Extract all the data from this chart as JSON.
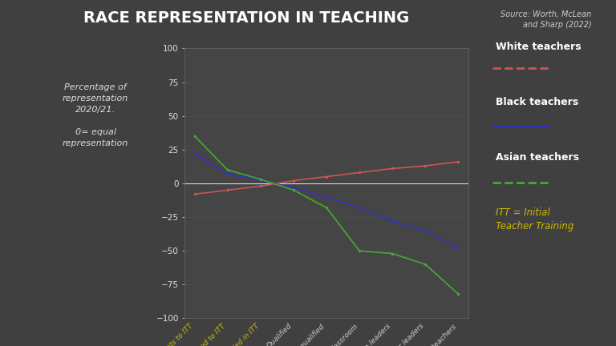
{
  "title": "RACE REPRESENTATION IN TEACHING",
  "source": "Source: Worth, McLean\nand Sharp (2022)",
  "ylabel_text": "Percentage of\nrepresentation\n2020/21.\n\n0= equal\nrepresentation",
  "itt_note": "ITT = Initial\nTeacher Training",
  "x_labels": [
    "Applicants to ITT",
    "Accepted to ITT",
    "Enrolled in ITT",
    "Qualified",
    "Newly-qualified",
    "Classroom",
    "Middle leaders",
    "Senior leaders",
    "Headteachers"
  ],
  "white_data": [
    -8,
    -5,
    -2,
    2,
    5,
    8,
    11,
    13,
    16
  ],
  "black_data": [
    22,
    7,
    2,
    -3,
    -10,
    -18,
    -28,
    -35,
    -48
  ],
  "asian_data": [
    35,
    10,
    3,
    -5,
    -18,
    -50,
    -52,
    -60,
    -82
  ],
  "white_color": "#cc5555",
  "black_color": "#3333bb",
  "asian_color": "#44aa33",
  "bg_color": "#404040",
  "chart_bg": "#454545",
  "text_color": "#e0e0e0",
  "grid_color": "#777777",
  "title_color": "#ffffff",
  "source_color": "#cccccc",
  "ylabel_color": "#dddddd",
  "legend_label_color": "#ffffff",
  "itt_color": "#ccbb00",
  "xtick_itt_color": "#ccbb00",
  "xtick_normal_color": "#cccccc",
  "ylim": [
    -100,
    100
  ],
  "yticks": [
    -100,
    -75,
    -50,
    -25,
    0,
    25,
    50,
    75,
    100
  ]
}
